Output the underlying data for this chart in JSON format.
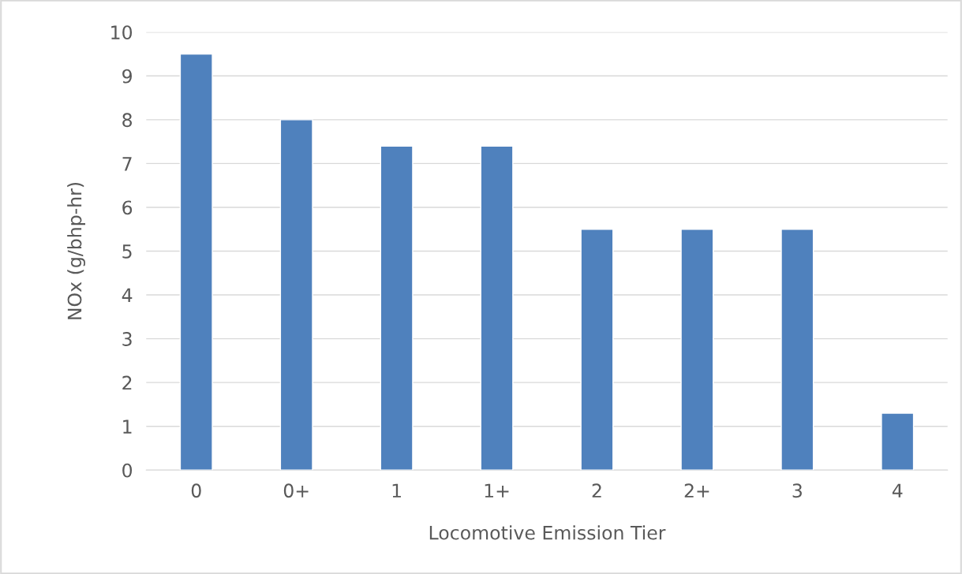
{
  "chart_data": {
    "type": "bar",
    "xlabel": "Locomotive Emission Tier",
    "ylabel": "NOx (g/bhp-hr)",
    "categories": [
      "0",
      "0+",
      "1",
      "1+",
      "2",
      "2+",
      "3",
      "4"
    ],
    "values": [
      9.5,
      8.0,
      7.4,
      7.4,
      5.5,
      5.5,
      5.5,
      1.3
    ],
    "color": "#4f81bd",
    "ylim": [
      0,
      10
    ],
    "yticks": [
      0,
      1,
      2,
      3,
      4,
      5,
      6,
      7,
      8,
      9,
      10
    ],
    "grid": "y",
    "legend": false
  }
}
